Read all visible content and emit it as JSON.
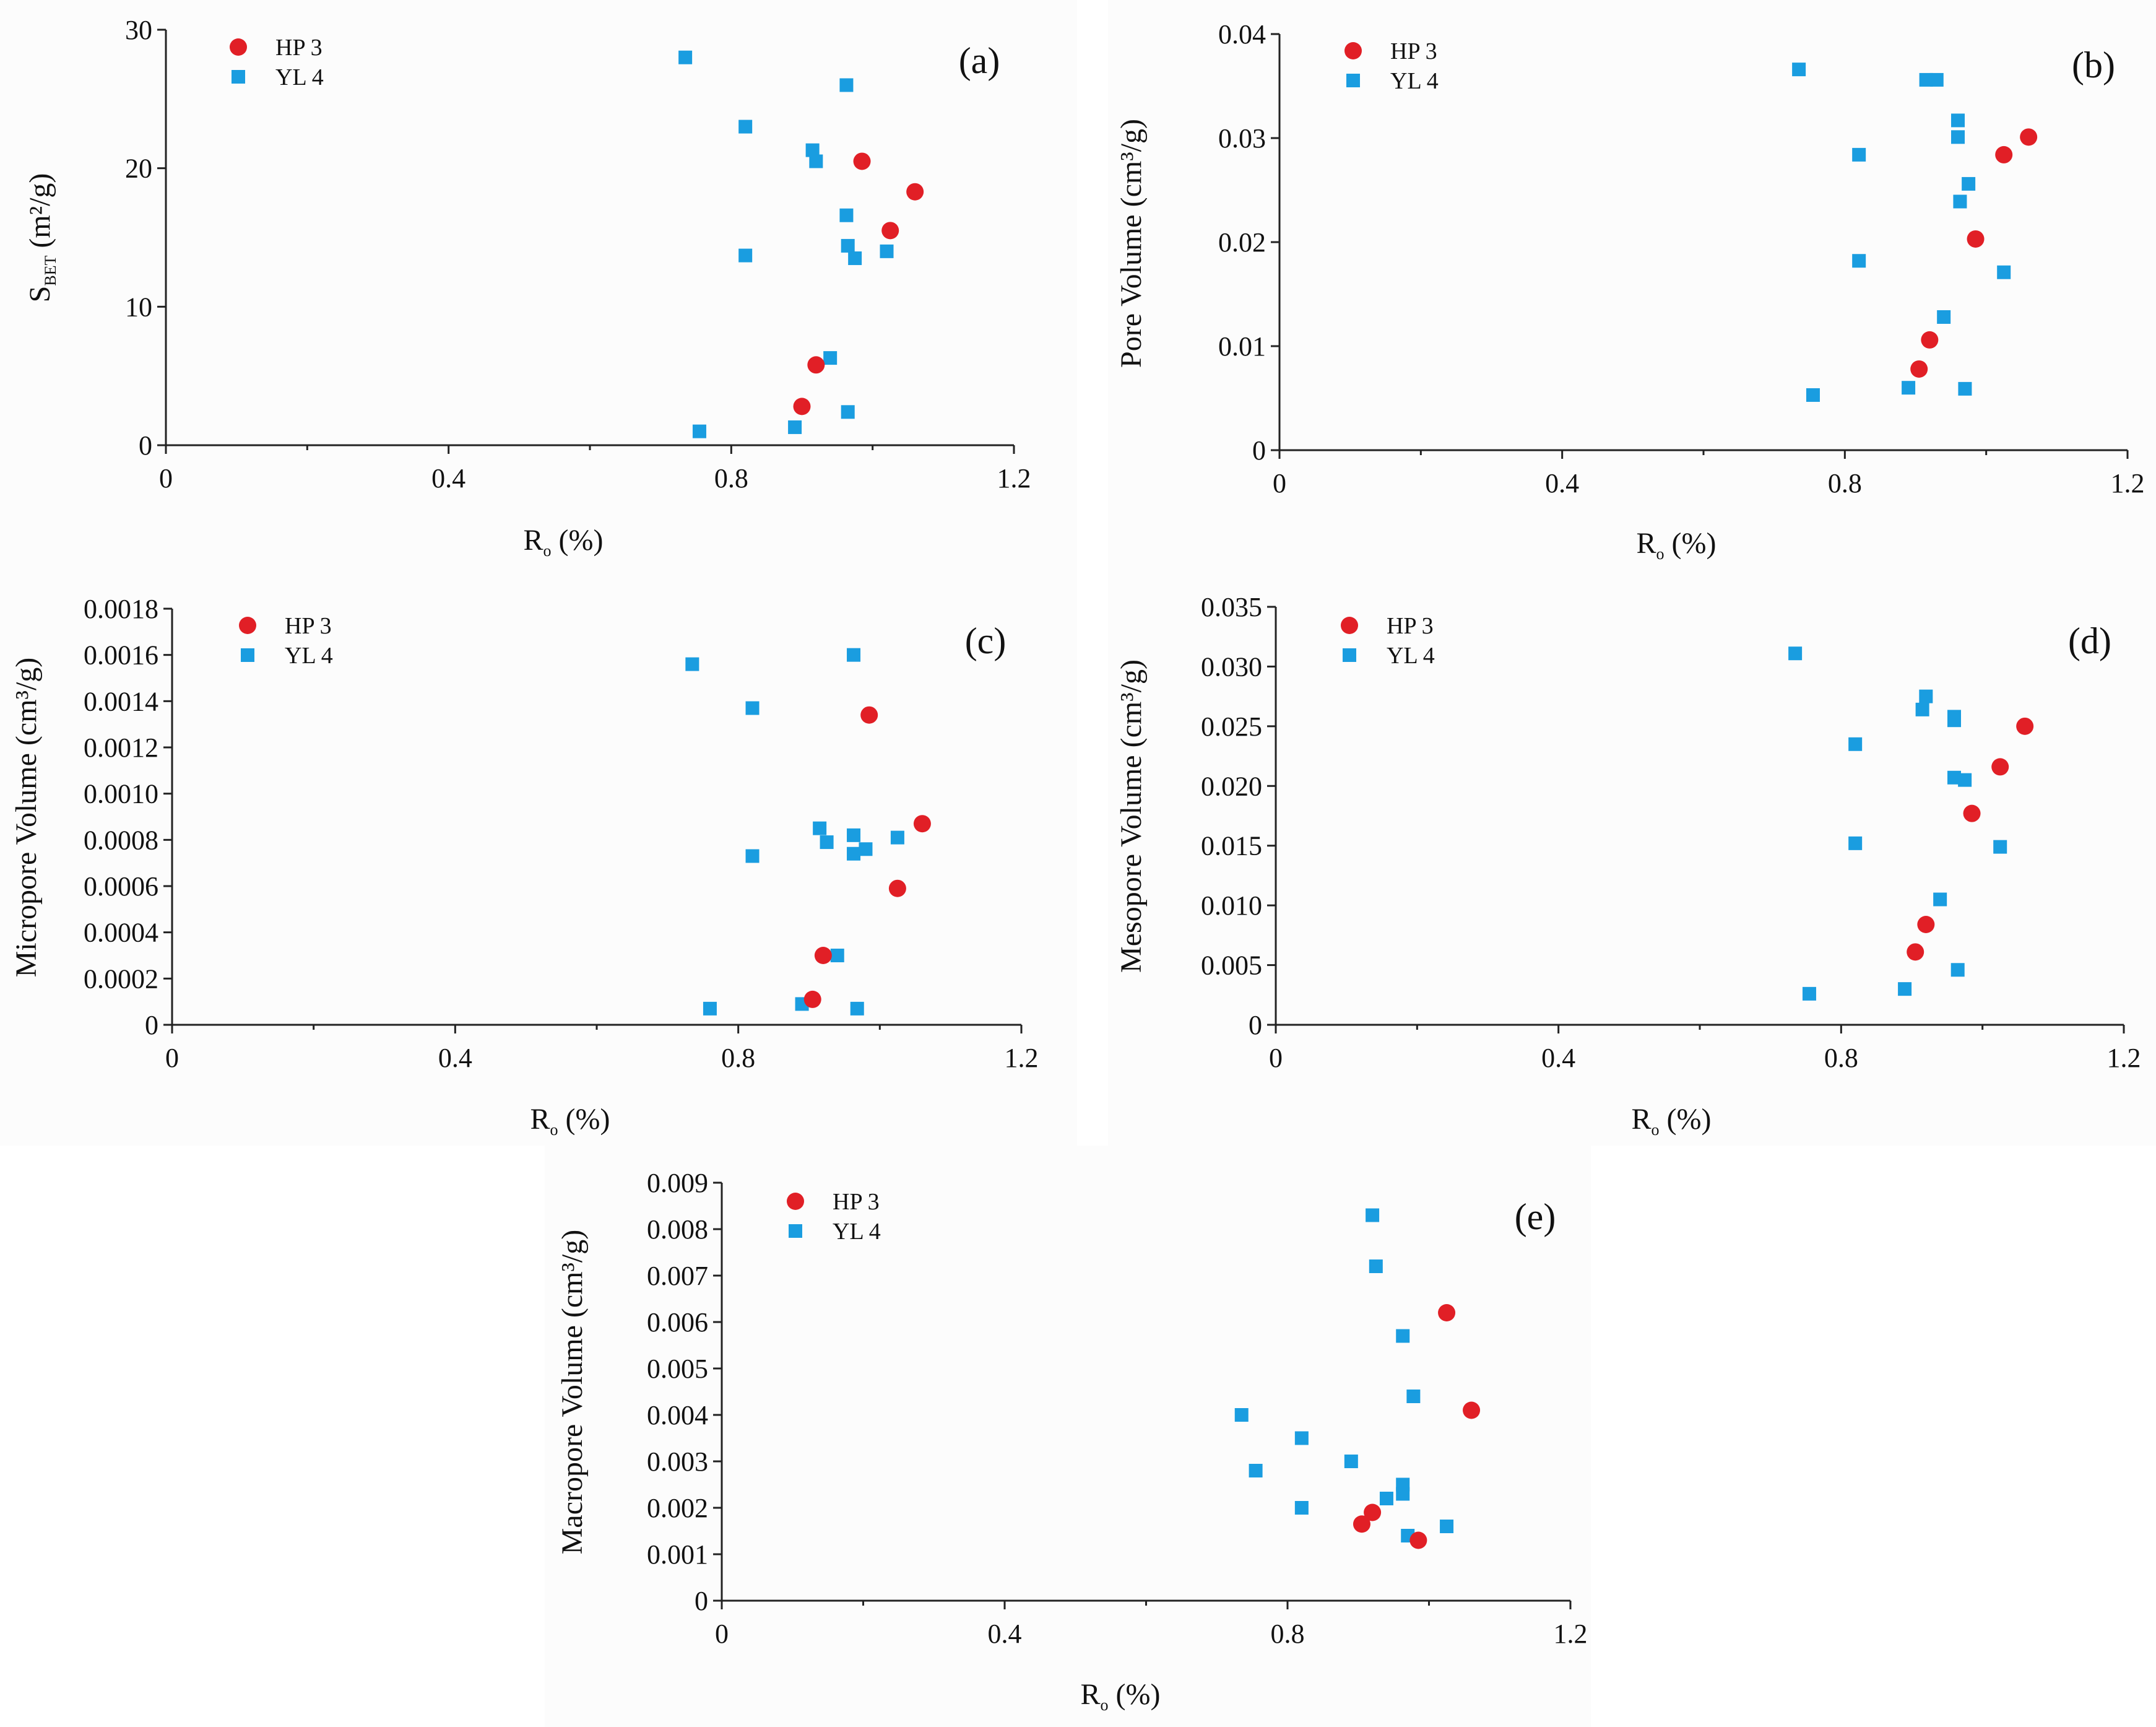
{
  "figure": {
    "colors": {
      "HP 3": "#e11f26",
      "YL 4": "#1a9de0",
      "axis": "#222222"
    }
  },
  "chart_data": [
    {
      "id": "a",
      "type": "scatter",
      "panel_label": "(a)",
      "xlabel": {
        "main": "R",
        "sub": "o",
        "rest": " (%)"
      },
      "ylabel": {
        "main": "S",
        "sub": "BET",
        "rest": " (m²/g)"
      },
      "xlim": [
        0,
        1.2
      ],
      "ylim": [
        0,
        30
      ],
      "xticks": [
        0,
        0.4,
        0.8,
        1.2
      ],
      "xtick_labels": [
        "0",
        "0.4",
        "0.8",
        "1.2"
      ],
      "yticks": [
        0,
        10,
        20,
        30
      ],
      "ytick_labels": [
        "0",
        "10",
        "20",
        "30"
      ],
      "legend": [
        "HP 3",
        "YL 4"
      ],
      "legend_position": "top-left",
      "series": [
        {
          "name": "HP 3",
          "marker": "circle",
          "points": [
            [
              0.9,
              2.8
            ],
            [
              0.92,
              5.8
            ],
            [
              0.985,
              20.5
            ],
            [
              1.025,
              15.5
            ],
            [
              1.06,
              18.3
            ]
          ]
        },
        {
          "name": "YL 4",
          "marker": "square",
          "points": [
            [
              0.735,
              28.0
            ],
            [
              0.755,
              1.0
            ],
            [
              0.82,
              23.0
            ],
            [
              0.82,
              13.7
            ],
            [
              0.89,
              1.3
            ],
            [
              0.915,
              21.3
            ],
            [
              0.92,
              20.5
            ],
            [
              0.94,
              6.3
            ],
            [
              0.963,
              26.0
            ],
            [
              0.963,
              16.6
            ],
            [
              0.965,
              14.4
            ],
            [
              0.965,
              2.4
            ],
            [
              0.975,
              13.5
            ],
            [
              1.02,
              14.0
            ]
          ]
        }
      ]
    },
    {
      "id": "b",
      "type": "scatter",
      "panel_label": "(b)",
      "xlabel": {
        "main": "R",
        "sub": "o",
        "rest": " (%)"
      },
      "ylabel": {
        "main": "Pore Volume (cm³/g)",
        "sub": "",
        "rest": ""
      },
      "xlim": [
        0,
        1.2
      ],
      "ylim": [
        0,
        0.04
      ],
      "xticks": [
        0,
        0.4,
        0.8,
        1.2
      ],
      "xtick_labels": [
        "0",
        "0.4",
        "0.8",
        "1.2"
      ],
      "yticks": [
        0,
        0.01,
        0.02,
        0.03,
        0.04
      ],
      "ytick_labels": [
        "0",
        "0.01",
        "0.02",
        "0.03",
        "0.04"
      ],
      "legend": [
        "HP 3",
        "YL 4"
      ],
      "legend_position": "top-left",
      "series": [
        {
          "name": "HP 3",
          "marker": "circle",
          "points": [
            [
              0.905,
              0.0078
            ],
            [
              0.92,
              0.0106
            ],
            [
              0.985,
              0.0203
            ],
            [
              1.025,
              0.0284
            ],
            [
              1.06,
              0.0301
            ]
          ]
        },
        {
          "name": "YL 4",
          "marker": "square",
          "points": [
            [
              0.735,
              0.0366
            ],
            [
              0.755,
              0.0053
            ],
            [
              0.82,
              0.0284
            ],
            [
              0.82,
              0.0182
            ],
            [
              0.89,
              0.006
            ],
            [
              0.915,
              0.0356
            ],
            [
              0.93,
              0.0356
            ],
            [
              0.94,
              0.0128
            ],
            [
              0.96,
              0.0317
            ],
            [
              0.96,
              0.0301
            ],
            [
              0.963,
              0.0239
            ],
            [
              0.97,
              0.0059
            ],
            [
              0.975,
              0.0256
            ],
            [
              1.025,
              0.0171
            ]
          ]
        }
      ]
    },
    {
      "id": "c",
      "type": "scatter",
      "panel_label": "(c)",
      "xlabel": {
        "main": "R",
        "sub": "o",
        "rest": " (%)"
      },
      "ylabel": {
        "main": "Micropore Volume (cm³/g)",
        "sub": "",
        "rest": ""
      },
      "xlim": [
        0,
        1.2
      ],
      "ylim": [
        0,
        0.0018
      ],
      "xticks": [
        0,
        0.4,
        0.8,
        1.2
      ],
      "xtick_labels": [
        "0",
        "0.4",
        "0.8",
        "1.2"
      ],
      "yticks": [
        0,
        0.0002,
        0.0004,
        0.0006,
        0.0008,
        0.001,
        0.0012,
        0.0014,
        0.0016,
        0.0018
      ],
      "ytick_labels": [
        "0",
        "0.0002",
        "0.0004",
        "0.0006",
        "0.0008",
        "0.0010",
        "0.0012",
        "0.0014",
        "0.0016",
        "0.0018"
      ],
      "legend": [
        "HP 3",
        "YL 4"
      ],
      "legend_position": "top-left",
      "series": [
        {
          "name": "HP 3",
          "marker": "circle",
          "points": [
            [
              0.905,
              0.00011
            ],
            [
              0.92,
              0.0003
            ],
            [
              0.985,
              0.00134
            ],
            [
              1.025,
              0.00059
            ],
            [
              1.06,
              0.00087
            ]
          ]
        },
        {
          "name": "YL 4",
          "marker": "square",
          "points": [
            [
              0.735,
              0.00156
            ],
            [
              0.76,
              7e-05
            ],
            [
              0.82,
              0.00137
            ],
            [
              0.82,
              0.00073
            ],
            [
              0.89,
              9e-05
            ],
            [
              0.915,
              0.00085
            ],
            [
              0.925,
              0.00079
            ],
            [
              0.94,
              0.0003
            ],
            [
              0.963,
              0.0016
            ],
            [
              0.963,
              0.00082
            ],
            [
              0.963,
              0.00074
            ],
            [
              0.968,
              7e-05
            ],
            [
              0.98,
              0.00076
            ],
            [
              1.025,
              0.00081
            ]
          ]
        }
      ]
    },
    {
      "id": "d",
      "type": "scatter",
      "panel_label": "(d)",
      "xlabel": {
        "main": "R",
        "sub": "o",
        "rest": " (%)"
      },
      "ylabel": {
        "main": "Mesopore Volume (cm³/g)",
        "sub": "",
        "rest": ""
      },
      "xlim": [
        0,
        1.2
      ],
      "ylim": [
        0,
        0.035
      ],
      "xticks": [
        0,
        0.4,
        0.8,
        1.2
      ],
      "xtick_labels": [
        "0",
        "0.4",
        "0.8",
        "1.2"
      ],
      "yticks": [
        0,
        0.005,
        0.01,
        0.015,
        0.02,
        0.025,
        0.03,
        0.035
      ],
      "ytick_labels": [
        "0",
        "0.005",
        "0.010",
        "0.015",
        "0.020",
        "0.025",
        "0.030",
        "0.035"
      ],
      "legend": [
        "HP 3",
        "YL 4"
      ],
      "legend_position": "top-left",
      "series": [
        {
          "name": "HP 3",
          "marker": "circle",
          "points": [
            [
              0.905,
              0.0061
            ],
            [
              0.92,
              0.0084
            ],
            [
              0.985,
              0.0177
            ],
            [
              1.025,
              0.0216
            ],
            [
              1.06,
              0.025
            ]
          ]
        },
        {
          "name": "YL 4",
          "marker": "square",
          "points": [
            [
              0.735,
              0.0311
            ],
            [
              0.755,
              0.0026
            ],
            [
              0.82,
              0.0235
            ],
            [
              0.82,
              0.0152
            ],
            [
              0.89,
              0.003
            ],
            [
              0.915,
              0.0264
            ],
            [
              0.92,
              0.0275
            ],
            [
              0.94,
              0.0105
            ],
            [
              0.96,
              0.0258
            ],
            [
              0.96,
              0.0255
            ],
            [
              0.96,
              0.0207
            ],
            [
              0.965,
              0.0046
            ],
            [
              0.975,
              0.0205
            ],
            [
              1.025,
              0.0149
            ]
          ]
        }
      ]
    },
    {
      "id": "e",
      "type": "scatter",
      "panel_label": "(e)",
      "xlabel": {
        "main": "R",
        "sub": "o",
        "rest": " (%)"
      },
      "ylabel": {
        "main": "Macropore Volume (cm³/g)",
        "sub": "",
        "rest": ""
      },
      "xlim": [
        0,
        1.2
      ],
      "ylim": [
        0,
        0.009
      ],
      "xticks": [
        0,
        0.4,
        0.8,
        1.2
      ],
      "xtick_labels": [
        "0",
        "0.4",
        "0.8",
        "1.2"
      ],
      "yticks": [
        0,
        0.001,
        0.002,
        0.003,
        0.004,
        0.005,
        0.006,
        0.007,
        0.008,
        0.009
      ],
      "ytick_labels": [
        "0",
        "0.001",
        "0.002",
        "0.003",
        "0.004",
        "0.005",
        "0.006",
        "0.007",
        "0.008",
        "0.009"
      ],
      "legend": [
        "HP 3",
        "YL 4"
      ],
      "legend_position": "top-left",
      "series": [
        {
          "name": "HP 3",
          "marker": "circle",
          "points": [
            [
              0.905,
              0.00165
            ],
            [
              0.92,
              0.0019
            ],
            [
              0.985,
              0.0013
            ],
            [
              1.025,
              0.0062
            ],
            [
              1.06,
              0.0041
            ]
          ]
        },
        {
          "name": "YL 4",
          "marker": "square",
          "points": [
            [
              0.735,
              0.004
            ],
            [
              0.755,
              0.0028
            ],
            [
              0.82,
              0.0035
            ],
            [
              0.82,
              0.002
            ],
            [
              0.89,
              0.003
            ],
            [
              0.92,
              0.0083
            ],
            [
              0.925,
              0.0072
            ],
            [
              0.94,
              0.0022
            ],
            [
              0.963,
              0.0057
            ],
            [
              0.963,
              0.0025
            ],
            [
              0.963,
              0.0023
            ],
            [
              0.97,
              0.0014
            ],
            [
              0.978,
              0.0044
            ],
            [
              1.025,
              0.0016
            ]
          ]
        }
      ]
    }
  ]
}
